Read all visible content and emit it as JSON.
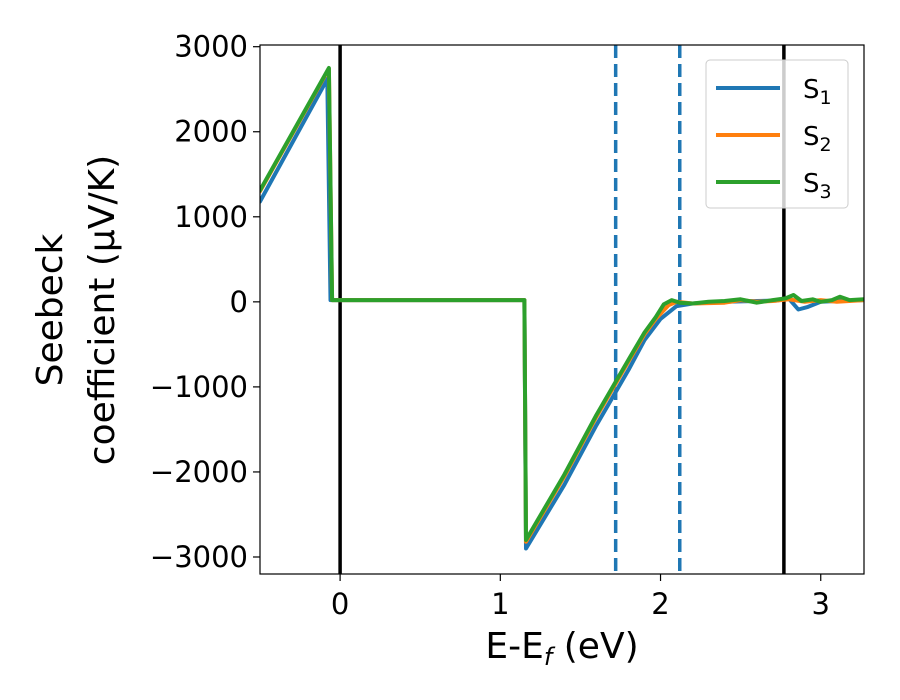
{
  "chart_data": {
    "type": "line",
    "xlabel": {
      "main": "E-E",
      "sub": "f",
      "rest": " (eV)"
    },
    "ylabel": {
      "line1": "Seebeck",
      "line2": "coefficient  (μV/K)"
    },
    "xlim": [
      -0.5,
      3.27
    ],
    "ylim": [
      -3200,
      3020
    ],
    "xticks": [
      {
        "value": 0,
        "label": "0"
      },
      {
        "value": 1,
        "label": "1"
      },
      {
        "value": 2,
        "label": "2"
      },
      {
        "value": 3,
        "label": "3"
      }
    ],
    "yticks": [
      {
        "value": 3000,
        "label": "3000"
      },
      {
        "value": 2000,
        "label": "2000"
      },
      {
        "value": 1000,
        "label": "1000"
      },
      {
        "value": 0,
        "label": "0"
      },
      {
        "value": -1000,
        "label": "−1000"
      },
      {
        "value": -2000,
        "label": "−2000"
      },
      {
        "value": -3000,
        "label": "−3000"
      }
    ],
    "grid": false,
    "legend": "top-right",
    "vlines": [
      {
        "x": 0,
        "style": "solid",
        "color": "#000000"
      },
      {
        "x": 2.77,
        "style": "solid",
        "color": "#000000"
      },
      {
        "x": 1.72,
        "style": "dashed",
        "color": "#1f77b4"
      },
      {
        "x": 2.12,
        "style": "dashed",
        "color": "#1f77b4"
      }
    ],
    "series": [
      {
        "name": {
          "main": "S",
          "sub": "1"
        },
        "color": "#1f77b4",
        "points": [
          [
            -0.5,
            1180
          ],
          [
            -0.08,
            2620
          ],
          [
            -0.06,
            20
          ],
          [
            1.15,
            20
          ],
          [
            1.16,
            -2900
          ],
          [
            1.4,
            -2150
          ],
          [
            1.6,
            -1450
          ],
          [
            1.8,
            -800
          ],
          [
            1.9,
            -450
          ],
          [
            2.0,
            -200
          ],
          [
            2.1,
            -50
          ],
          [
            2.2,
            -20
          ],
          [
            2.4,
            0
          ],
          [
            2.6,
            10
          ],
          [
            2.72,
            15
          ],
          [
            2.8,
            40
          ],
          [
            2.86,
            -90
          ],
          [
            2.92,
            -60
          ],
          [
            3.0,
            0
          ],
          [
            3.1,
            10
          ],
          [
            3.27,
            20
          ]
        ]
      },
      {
        "name": {
          "main": "S",
          "sub": "2"
        },
        "color": "#ff7f0e",
        "points": [
          [
            -0.5,
            1300
          ],
          [
            -0.07,
            2740
          ],
          [
            -0.05,
            20
          ],
          [
            1.15,
            20
          ],
          [
            1.16,
            -2820
          ],
          [
            1.4,
            -2050
          ],
          [
            1.6,
            -1350
          ],
          [
            1.8,
            -700
          ],
          [
            1.9,
            -380
          ],
          [
            1.97,
            -200
          ],
          [
            2.05,
            -40
          ],
          [
            2.1,
            0
          ],
          [
            2.2,
            -20
          ],
          [
            2.4,
            -10
          ],
          [
            2.5,
            20
          ],
          [
            2.6,
            0
          ],
          [
            2.7,
            10
          ],
          [
            2.8,
            30
          ],
          [
            2.9,
            0
          ],
          [
            3.0,
            20
          ],
          [
            3.1,
            0
          ],
          [
            3.27,
            20
          ]
        ]
      },
      {
        "name": {
          "main": "S",
          "sub": "3"
        },
        "color": "#2ca02c",
        "points": [
          [
            -0.5,
            1310
          ],
          [
            -0.07,
            2750
          ],
          [
            -0.05,
            20
          ],
          [
            1.15,
            20
          ],
          [
            1.16,
            -2800
          ],
          [
            1.4,
            -2030
          ],
          [
            1.6,
            -1330
          ],
          [
            1.8,
            -680
          ],
          [
            1.9,
            -360
          ],
          [
            1.97,
            -180
          ],
          [
            2.02,
            -30
          ],
          [
            2.07,
            20
          ],
          [
            2.12,
            -10
          ],
          [
            2.2,
            -20
          ],
          [
            2.3,
            0
          ],
          [
            2.4,
            10
          ],
          [
            2.5,
            30
          ],
          [
            2.55,
            10
          ],
          [
            2.6,
            -10
          ],
          [
            2.7,
            20
          ],
          [
            2.78,
            40
          ],
          [
            2.83,
            80
          ],
          [
            2.88,
            10
          ],
          [
            2.95,
            30
          ],
          [
            3.0,
            0
          ],
          [
            3.07,
            20
          ],
          [
            3.12,
            60
          ],
          [
            3.18,
            20
          ],
          [
            3.27,
            30
          ]
        ]
      }
    ]
  }
}
